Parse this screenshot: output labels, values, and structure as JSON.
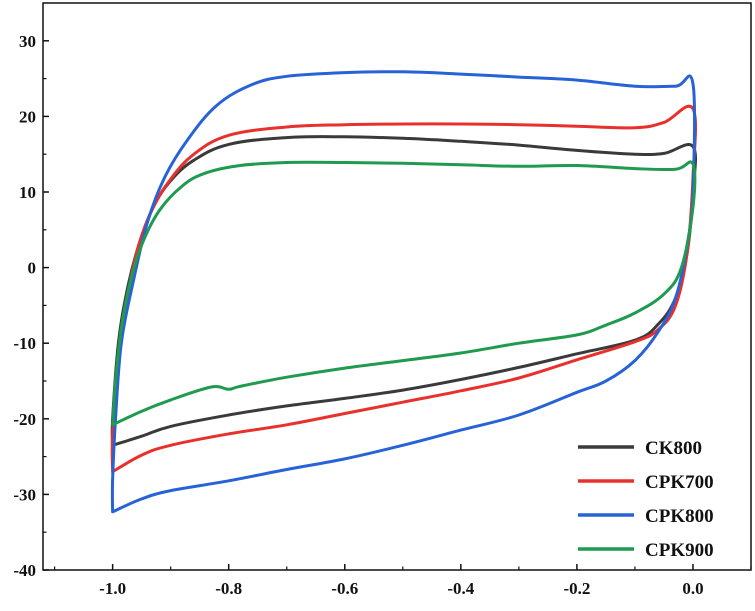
{
  "chart_data": {
    "type": "line",
    "title": "",
    "xlabel": "",
    "ylabel": "",
    "xlim": [
      -1.12,
      0.1
    ],
    "ylim": [
      -40,
      35
    ],
    "x_ticks": [
      -1.0,
      -0.8,
      -0.6,
      -0.4,
      -0.2,
      0.0
    ],
    "x_tick_labels": [
      "-1.0",
      "-0.8",
      "-0.6",
      "-0.4",
      "-0.2",
      "0.0"
    ],
    "y_ticks": [
      -40,
      -30,
      -20,
      -10,
      0,
      10,
      20,
      30
    ],
    "y_tick_labels": [
      "-40",
      "-30",
      "-20",
      "-10",
      "0",
      "10",
      "20",
      "30"
    ],
    "grid": false,
    "legend": "bottom-right",
    "series": [
      {
        "name": "CK800",
        "color": "#3a3a3a",
        "points": [
          [
            -1.0,
            -23.5
          ],
          [
            -1.0,
            -20
          ],
          [
            -0.99,
            -10
          ],
          [
            -0.975,
            -3
          ],
          [
            -0.955,
            3
          ],
          [
            -0.93,
            8
          ],
          [
            -0.9,
            11.5
          ],
          [
            -0.86,
            14.2
          ],
          [
            -0.8,
            16.3
          ],
          [
            -0.7,
            17.2
          ],
          [
            -0.6,
            17.3
          ],
          [
            -0.5,
            17.1
          ],
          [
            -0.4,
            16.7
          ],
          [
            -0.3,
            16.2
          ],
          [
            -0.2,
            15.5
          ],
          [
            -0.1,
            15.0
          ],
          [
            -0.05,
            15.1
          ],
          [
            0.0,
            16.0
          ],
          [
            0.0,
            10
          ],
          [
            -0.01,
            2
          ],
          [
            -0.03,
            -4
          ],
          [
            -0.06,
            -7.5
          ],
          [
            -0.1,
            -9.6
          ],
          [
            -0.2,
            -11.4
          ],
          [
            -0.3,
            -13.2
          ],
          [
            -0.4,
            -14.8
          ],
          [
            -0.5,
            -16.2
          ],
          [
            -0.6,
            -17.3
          ],
          [
            -0.7,
            -18.3
          ],
          [
            -0.8,
            -19.5
          ],
          [
            -0.9,
            -21.0
          ],
          [
            -0.95,
            -22.3
          ],
          [
            -1.0,
            -23.5
          ]
        ]
      },
      {
        "name": "CPK700",
        "color": "#e8302c",
        "points": [
          [
            -1.0,
            -27
          ],
          [
            -1.0,
            -22
          ],
          [
            -0.99,
            -12
          ],
          [
            -0.975,
            -4
          ],
          [
            -0.955,
            3
          ],
          [
            -0.93,
            8
          ],
          [
            -0.9,
            11.7
          ],
          [
            -0.86,
            15
          ],
          [
            -0.8,
            17.5
          ],
          [
            -0.7,
            18.6
          ],
          [
            -0.6,
            18.9
          ],
          [
            -0.5,
            19.0
          ],
          [
            -0.4,
            19.0
          ],
          [
            -0.3,
            18.9
          ],
          [
            -0.2,
            18.7
          ],
          [
            -0.1,
            18.5
          ],
          [
            -0.05,
            19.2
          ],
          [
            0.0,
            21.0
          ],
          [
            0.0,
            12
          ],
          [
            -0.01,
            2
          ],
          [
            -0.03,
            -5
          ],
          [
            -0.06,
            -8.2
          ],
          [
            -0.1,
            -9.8
          ],
          [
            -0.2,
            -12.2
          ],
          [
            -0.3,
            -14.6
          ],
          [
            -0.4,
            -16.3
          ],
          [
            -0.5,
            -17.8
          ],
          [
            -0.6,
            -19.3
          ],
          [
            -0.7,
            -20.8
          ],
          [
            -0.8,
            -22.0
          ],
          [
            -0.9,
            -23.5
          ],
          [
            -0.95,
            -24.8
          ],
          [
            -1.0,
            -27.0
          ]
        ]
      },
      {
        "name": "CPK800",
        "color": "#2763d6",
        "points": [
          [
            -1.0,
            -32.3
          ],
          [
            -1.0,
            -28
          ],
          [
            -0.995,
            -20
          ],
          [
            -0.985,
            -10
          ],
          [
            -0.965,
            -2
          ],
          [
            -0.94,
            6
          ],
          [
            -0.91,
            12
          ],
          [
            -0.87,
            17
          ],
          [
            -0.82,
            21.5
          ],
          [
            -0.76,
            24.2
          ],
          [
            -0.7,
            25.3
          ],
          [
            -0.6,
            25.8
          ],
          [
            -0.5,
            25.9
          ],
          [
            -0.4,
            25.6
          ],
          [
            -0.3,
            25.2
          ],
          [
            -0.2,
            24.8
          ],
          [
            -0.1,
            24.0
          ],
          [
            -0.03,
            24.0
          ],
          [
            0.0,
            24.3
          ],
          [
            0.0,
            10
          ],
          [
            -0.01,
            3
          ],
          [
            -0.03,
            -4
          ],
          [
            -0.06,
            -8.5
          ],
          [
            -0.1,
            -12.3
          ],
          [
            -0.15,
            -15.0
          ],
          [
            -0.2,
            -16.5
          ],
          [
            -0.3,
            -19.5
          ],
          [
            -0.4,
            -21.5
          ],
          [
            -0.5,
            -23.5
          ],
          [
            -0.6,
            -25.3
          ],
          [
            -0.7,
            -26.7
          ],
          [
            -0.8,
            -28.2
          ],
          [
            -0.9,
            -29.5
          ],
          [
            -0.95,
            -30.6
          ],
          [
            -1.0,
            -32.3
          ]
        ]
      },
      {
        "name": "CPK900",
        "color": "#1f9a4f",
        "points": [
          [
            -1.0,
            -20.8
          ],
          [
            -0.995,
            -15
          ],
          [
            -0.985,
            -8
          ],
          [
            -0.97,
            -2
          ],
          [
            -0.95,
            3
          ],
          [
            -0.92,
            7.5
          ],
          [
            -0.88,
            10.8
          ],
          [
            -0.84,
            12.5
          ],
          [
            -0.78,
            13.5
          ],
          [
            -0.7,
            13.9
          ],
          [
            -0.6,
            13.9
          ],
          [
            -0.5,
            13.8
          ],
          [
            -0.4,
            13.6
          ],
          [
            -0.3,
            13.4
          ],
          [
            -0.2,
            13.5
          ],
          [
            -0.1,
            13.1
          ],
          [
            -0.03,
            13.0
          ],
          [
            0.0,
            13.7
          ],
          [
            0.0,
            8
          ],
          [
            -0.02,
            0
          ],
          [
            -0.05,
            -3.5
          ],
          [
            -0.1,
            -6
          ],
          [
            -0.15,
            -7.6
          ],
          [
            -0.2,
            -8.9
          ],
          [
            -0.3,
            -10.0
          ],
          [
            -0.4,
            -11.3
          ],
          [
            -0.5,
            -12.3
          ],
          [
            -0.6,
            -13.3
          ],
          [
            -0.7,
            -14.5
          ],
          [
            -0.78,
            -15.7
          ],
          [
            -0.8,
            -16.1
          ],
          [
            -0.83,
            -15.8
          ],
          [
            -0.9,
            -17.5
          ],
          [
            -0.95,
            -19.0
          ],
          [
            -1.0,
            -20.8
          ]
        ]
      }
    ]
  }
}
